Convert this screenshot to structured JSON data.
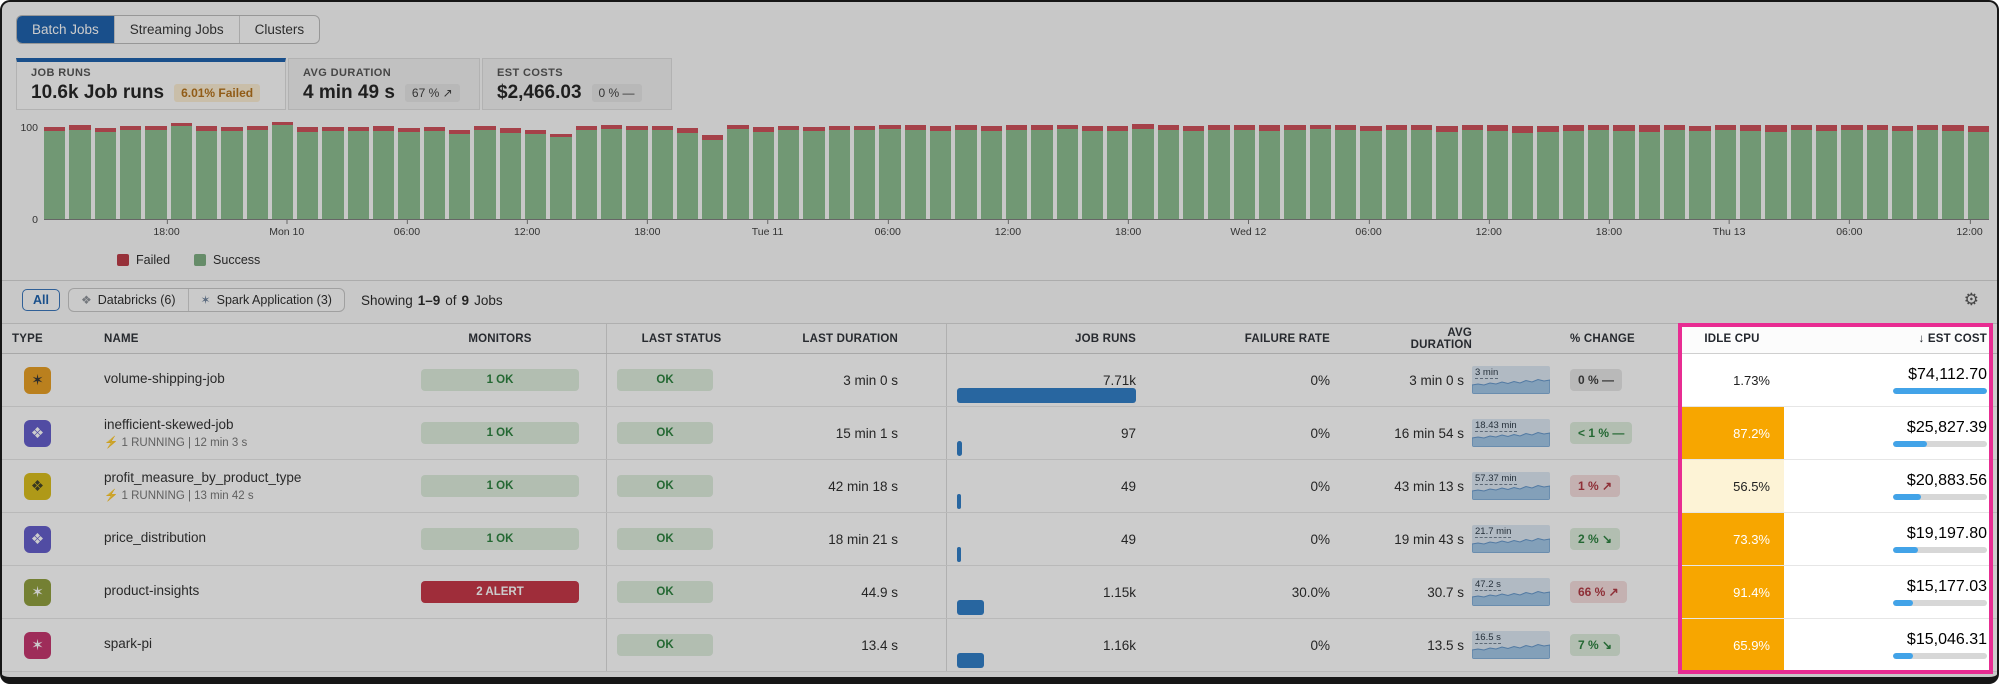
{
  "tabs": [
    {
      "label": "Batch Jobs"
    },
    {
      "label": "Streaming Jobs"
    },
    {
      "label": "Clusters"
    }
  ],
  "cards": {
    "job_runs": {
      "label": "JOB RUNS",
      "value": "10.6k Job runs",
      "badge": "6.01% Failed"
    },
    "avg_duration": {
      "label": "AVG DURATION",
      "value": "4 min 49 s",
      "badge": "67 % ↗"
    },
    "est_costs": {
      "label": "EST COSTS",
      "value": "$2,466.03",
      "badge": "0 % —"
    }
  },
  "chart_data": {
    "type": "bar",
    "stacked": true,
    "title": "Job runs over time",
    "ylim": [
      0,
      110
    ],
    "yticks": [
      "100",
      "0"
    ],
    "grid": false,
    "legend_position": "bottom-left",
    "x_labels": [
      "18:00",
      "Mon 10",
      "06:00",
      "12:00",
      "18:00",
      "Tue 11",
      "06:00",
      "12:00",
      "18:00",
      "Wed 12",
      "06:00",
      "12:00",
      "18:00",
      "Thu 13",
      "06:00",
      "12:00"
    ],
    "series": [
      {
        "name": "Success",
        "color": "#86ba8a",
        "values": [
          98,
          99,
          97,
          99,
          99,
          103,
          98,
          98,
          99,
          104,
          97,
          98,
          98,
          98,
          97,
          98,
          95,
          99,
          96,
          94,
          91,
          99,
          100,
          99,
          99,
          96,
          88,
          100,
          97,
          99,
          98,
          99,
          99,
          100,
          99,
          98,
          99,
          98,
          99,
          99,
          100,
          98,
          98,
          100,
          99,
          98,
          99,
          99,
          98,
          99,
          100,
          99,
          98,
          99,
          99,
          97,
          99,
          98,
          96,
          97,
          98,
          99,
          98,
          97,
          99,
          98,
          99,
          98,
          97,
          99,
          98,
          99,
          99,
          98,
          99,
          98,
          97
        ]
      },
      {
        "name": "Failed",
        "color": "#cb4650",
        "values": [
          4,
          5,
          4,
          4,
          4,
          4,
          5,
          4,
          4,
          4,
          5,
          4,
          4,
          5,
          4,
          4,
          4,
          4,
          5,
          5,
          4,
          4,
          4,
          4,
          4,
          5,
          5,
          4,
          5,
          4,
          4,
          4,
          4,
          5,
          6,
          5,
          5,
          5,
          5,
          5,
          5,
          5,
          5,
          6,
          5,
          5,
          5,
          5,
          6,
          5,
          5,
          5,
          5,
          5,
          5,
          6,
          5,
          6,
          7,
          6,
          6,
          6,
          6,
          7,
          6,
          5,
          6,
          6,
          7,
          6,
          6,
          6,
          6,
          5,
          6,
          6,
          6
        ]
      }
    ]
  },
  "legend": {
    "failed": "Failed",
    "success": "Success"
  },
  "filters": {
    "all": "All",
    "databricks": "Databricks (6)",
    "spark": "Spark Application (3)",
    "showing": {
      "label": "Showing",
      "range": "1–9",
      "of": "of",
      "count": "9",
      "suffix": "Jobs"
    }
  },
  "icons": {
    "gear": "⚙",
    "sort_desc": "↓",
    "spark_star": "✶",
    "databricks_logo": "❖"
  },
  "table": {
    "headers": [
      "TYPE",
      "NAME",
      "MONITORS",
      "LAST STATUS",
      "LAST DURATION",
      "JOB RUNS",
      "FAILURE RATE",
      "AVG DURATION",
      "% CHANGE",
      "IDLE CPU",
      "EST COST"
    ],
    "rows": [
      {
        "name": "volume-shipping-job",
        "sub": "",
        "icon_glyph": "✶",
        "icon_variant": "orange",
        "monitors": "1 OK",
        "monitors_tone": "ok",
        "status": "OK",
        "status_tone": "ok",
        "last_duration": "3 min 0 s",
        "job_runs": "7.71k",
        "runs_bar": "width:100%",
        "failure_rate": "0%",
        "fail_bar": "width:0%",
        "avg_duration": "3 min 0 s",
        "spark_label": "3 min",
        "change": "0 % —",
        "change_tone": "neutral",
        "idle_cpu": "1.73%",
        "idle_level": "none",
        "est_cost": "$74,112.70",
        "cost_bar": "width:100%"
      },
      {
        "name": "inefficient-skewed-job",
        "sub": "⚡ 1 RUNNING | 12 min 3 s",
        "icon_glyph": "❖",
        "icon_variant": "purple",
        "monitors": "1 OK",
        "monitors_tone": "ok",
        "status": "OK",
        "status_tone": "ok",
        "last_duration": "15 min 1 s",
        "job_runs": "97",
        "runs_bar": "width:3%",
        "failure_rate": "0%",
        "fail_bar": "width:0%",
        "avg_duration": "16 min 54 s",
        "spark_label": "18.43 min",
        "change": "< 1 % —",
        "change_tone": "good",
        "idle_cpu": "87.2%",
        "idle_level": "hot",
        "est_cost": "$25,827.39",
        "cost_bar": "width:36%"
      },
      {
        "name": "profit_measure_by_product_type",
        "sub": "⚡ 1 RUNNING | 13 min 42 s",
        "icon_glyph": "❖",
        "icon_variant": "yellow",
        "monitors": "1 OK",
        "monitors_tone": "ok",
        "status": "OK",
        "status_tone": "ok",
        "last_duration": "42 min 18 s",
        "job_runs": "49",
        "runs_bar": "width:2%",
        "failure_rate": "0%",
        "fail_bar": "width:0%",
        "avg_duration": "43 min 13 s",
        "spark_label": "57.37 min",
        "change": "1 % ↗",
        "change_tone": "bad",
        "idle_cpu": "56.5%",
        "idle_level": "warm",
        "est_cost": "$20,883.56",
        "cost_bar": "width:30%"
      },
      {
        "name": "price_distribution",
        "sub": "",
        "icon_glyph": "❖",
        "icon_variant": "purple",
        "monitors": "1 OK",
        "monitors_tone": "ok",
        "status": "OK",
        "status_tone": "ok",
        "last_duration": "18 min 21 s",
        "job_runs": "49",
        "runs_bar": "width:2%",
        "failure_rate": "0%",
        "fail_bar": "width:0%",
        "avg_duration": "19 min 43 s",
        "spark_label": "21.7 min",
        "change": "2 % ↘",
        "change_tone": "good",
        "idle_cpu": "73.3%",
        "idle_level": "hot",
        "est_cost": "$19,197.80",
        "cost_bar": "width:27%"
      },
      {
        "name": "product-insights",
        "sub": "",
        "icon_glyph": "✶",
        "icon_variant": "olive",
        "monitors": "2 ALERT",
        "monitors_tone": "alert",
        "status": "OK",
        "status_tone": "ok",
        "last_duration": "44.9 s",
        "job_runs": "1.15k",
        "runs_bar": "width:15%",
        "failure_rate": "30.0%",
        "fail_bar": "width:30%",
        "avg_duration": "30.7 s",
        "spark_label": "47.2 s",
        "change": "66 % ↗",
        "change_tone": "bad",
        "idle_cpu": "91.4%",
        "idle_level": "hot",
        "est_cost": "$15,177.03",
        "cost_bar": "width:21%"
      },
      {
        "name": "spark-pi",
        "sub": "",
        "icon_glyph": "✶",
        "icon_variant": "pink",
        "monitors": "",
        "monitors_tone": "none",
        "status": "OK",
        "status_tone": "ok",
        "last_duration": "13.4 s",
        "job_runs": "1.16k",
        "runs_bar": "width:15%",
        "failure_rate": "0%",
        "fail_bar": "width:0%",
        "avg_duration": "13.5 s",
        "spark_label": "16.5 s",
        "change": "7 % ↘",
        "change_tone": "good",
        "idle_cpu": "65.9%",
        "idle_level": "hot",
        "est_cost": "$15,046.31",
        "cost_bar": "width:21%"
      }
    ]
  }
}
